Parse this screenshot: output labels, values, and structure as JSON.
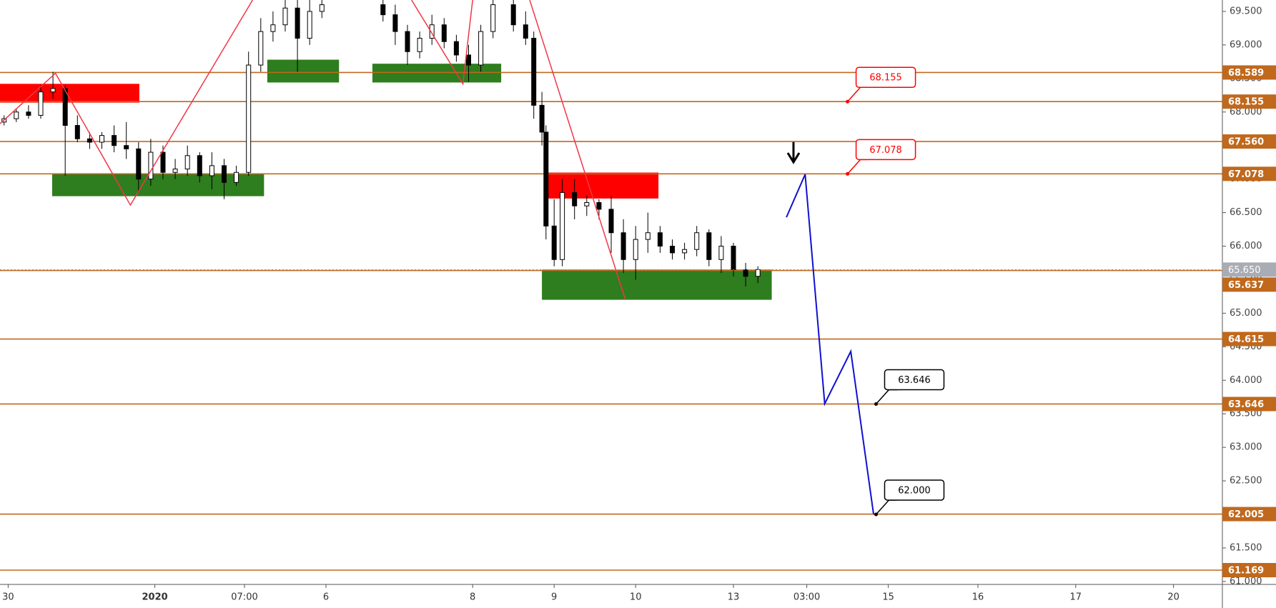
{
  "chart_data": {
    "type": "candlestick",
    "xlim": [
      0,
      150
    ],
    "ylim": [
      60.956,
      69.67
    ],
    "xticks": [
      {
        "value": 1,
        "label": "30"
      },
      {
        "value": 19,
        "label": "2020"
      },
      {
        "value": 30,
        "label": "07:00"
      },
      {
        "value": 40,
        "label": "6"
      },
      {
        "value": 58,
        "label": "8"
      },
      {
        "value": 68,
        "label": "9"
      },
      {
        "value": 78,
        "label": "10"
      },
      {
        "value": 90,
        "label": "13"
      },
      {
        "value": 99,
        "label": "03:00"
      },
      {
        "value": 109,
        "label": "15"
      },
      {
        "value": 120,
        "label": "16"
      },
      {
        "value": 132,
        "label": "17"
      },
      {
        "value": 144,
        "label": "20"
      }
    ],
    "yticks": [
      {
        "value": 61,
        "label": "61.000"
      },
      {
        "value": 61.5,
        "label": "61.500"
      },
      {
        "value": 62,
        "label": "62.000"
      },
      {
        "value": 62.5,
        "label": "62.500"
      },
      {
        "value": 63,
        "label": "63.000"
      },
      {
        "value": 63.5,
        "label": "63.500"
      },
      {
        "value": 64,
        "label": "64.000"
      },
      {
        "value": 64.5,
        "label": "64.500"
      },
      {
        "value": 65,
        "label": "65.000"
      },
      {
        "value": 65.5,
        "label": "65.500"
      },
      {
        "value": 66,
        "label": "66.000"
      },
      {
        "value": 66.5,
        "label": "66.500"
      },
      {
        "value": 67,
        "label": "67.000"
      },
      {
        "value": 67.5,
        "label": "67.500"
      },
      {
        "value": 68,
        "label": "68.000"
      },
      {
        "value": 68.5,
        "label": "68.500"
      },
      {
        "value": 69,
        "label": "69.000"
      },
      {
        "value": 69.5,
        "label": "69.500"
      }
    ],
    "x": [
      0.5,
      2,
      3.5,
      5,
      6.5,
      8,
      9.5,
      11,
      12.5,
      14,
      15.5,
      17,
      18.5,
      20,
      21.5,
      23,
      24.5,
      26,
      27.5,
      29,
      30.5,
      32,
      33.5,
      35,
      36.5,
      38,
      39.5,
      47,
      48.5,
      50,
      51.5,
      53,
      54.5,
      56,
      57.5,
      59,
      60.5,
      63,
      64.5,
      65.5,
      66.5,
      67,
      68,
      69,
      70.5,
      72,
      73.5,
      75,
      76.5,
      78,
      79.5,
      81,
      82.5,
      84,
      85.5,
      87,
      88.5,
      90,
      91.5,
      93
    ],
    "open": [
      67.85,
      67.9,
      68,
      67.95,
      68.3,
      68.35,
      67.8,
      67.6,
      67.55,
      67.65,
      67.5,
      67.45,
      67,
      67.4,
      67.1,
      67.15,
      67.35,
      67.05,
      67.2,
      66.95,
      67.1,
      68.7,
      69.2,
      69.3,
      69.55,
      69.1,
      69.5,
      69.6,
      69.45,
      69.2,
      68.9,
      69.1,
      69.3,
      69.05,
      68.85,
      68.7,
      69.2,
      69.6,
      69.3,
      69.1,
      68.1,
      67.7,
      66.3,
      65.8,
      66.8,
      66.6,
      66.65,
      66.55,
      66.2,
      65.8,
      66.1,
      66.2,
      66,
      65.9,
      65.95,
      66.2,
      65.8,
      66,
      65.65,
      65.55
    ],
    "high": [
      67.95,
      68.05,
      68.1,
      68.4,
      68.6,
      68.4,
      67.95,
      67.7,
      67.7,
      67.8,
      67.85,
      67.55,
      67.6,
      67.5,
      67.3,
      67.5,
      67.4,
      67.4,
      67.3,
      67.2,
      68.9,
      69.4,
      69.5,
      69.67,
      69.67,
      69.67,
      69.67,
      69.67,
      69.6,
      69.3,
      69.2,
      69.45,
      69.4,
      69.15,
      69,
      69.3,
      69.67,
      69.67,
      69.5,
      69.2,
      68.3,
      67.8,
      66.7,
      67,
      67,
      66.75,
      66.7,
      66.75,
      66.4,
      66.3,
      66.5,
      66.3,
      66.1,
      66.05,
      66.3,
      66.25,
      66.15,
      66.05,
      65.75,
      65.7
    ],
    "low": [
      67.8,
      67.85,
      67.9,
      67.9,
      68.2,
      67.05,
      67.55,
      67.45,
      67.45,
      67.4,
      67.3,
      66.8,
      66.9,
      67,
      67,
      67.05,
      66.95,
      66.85,
      66.7,
      66.9,
      67.05,
      68.6,
      69.05,
      69.2,
      68.6,
      69,
      69.4,
      69.35,
      69,
      68.7,
      68.8,
      69,
      68.95,
      68.75,
      68.45,
      68.6,
      69.1,
      69.2,
      69,
      67.9,
      67.5,
      66.1,
      65.7,
      65.7,
      66.4,
      66.45,
      66.4,
      65.9,
      65.6,
      65.5,
      65.9,
      65.9,
      65.8,
      65.8,
      65.85,
      65.7,
      65.6,
      65.55,
      65.4,
      65.45
    ],
    "close": [
      67.9,
      68,
      67.95,
      68.3,
      68.35,
      67.8,
      67.6,
      67.55,
      67.65,
      67.5,
      67.45,
      67,
      67.4,
      67.1,
      67.15,
      67.35,
      67.05,
      67.2,
      66.95,
      67.1,
      68.7,
      69.2,
      69.3,
      69.55,
      69.1,
      69.5,
      69.6,
      69.45,
      69.2,
      68.9,
      69.1,
      69.3,
      69.05,
      68.85,
      68.7,
      69.2,
      69.6,
      69.3,
      69.1,
      68.1,
      67.7,
      66.3,
      65.8,
      66.8,
      66.6,
      66.65,
      66.55,
      66.2,
      65.8,
      66.1,
      66.2,
      66,
      65.9,
      65.95,
      66.2,
      65.8,
      66,
      65.65,
      65.55,
      65.65
    ],
    "levels": {
      "color": "#c0681c",
      "values": [
        68.589,
        68.155,
        67.56,
        67.078,
        65.637,
        64.615,
        63.646,
        62.005,
        61.169
      ],
      "value_labels": [
        "68.589",
        "68.155",
        "67.560",
        "67.078",
        "65.637",
        "64.615",
        "63.646",
        "62.005",
        "61.169"
      ]
    },
    "last_price": {
      "value": 65.65,
      "label": "65.650"
    },
    "zones": [
      {
        "color": "#ff0000",
        "x": [
          0,
          17.1
        ],
        "y": [
          68.14,
          68.42
        ]
      },
      {
        "color": "#2e7d1e",
        "x": [
          6.4,
          32.4
        ],
        "y": [
          66.745,
          67.085
        ]
      },
      {
        "color": "#2e7d1e",
        "x": [
          32.8,
          41.6
        ],
        "y": [
          68.44,
          68.78
        ]
      },
      {
        "color": "#2e7d1e",
        "x": [
          45.7,
          61.5
        ],
        "y": [
          68.44,
          68.72
        ]
      },
      {
        "color": "#ff0000",
        "x": [
          67,
          80.8
        ],
        "y": [
          66.71,
          67.097
        ]
      },
      {
        "color": "#2e7d1e",
        "x": [
          66.5,
          94.7
        ],
        "y": [
          65.2,
          65.65
        ]
      }
    ],
    "zigzag": {
      "color": "#f23645",
      "x": [
        0,
        6.8,
        16,
        31,
        null,
        50.5,
        56.8,
        58,
        null,
        65,
        76.7
      ],
      "values": [
        67.825,
        68.578,
        66.612,
        69.67,
        null,
        69.67,
        68.42,
        69.67,
        null,
        69.67,
        65.216
      ]
    },
    "projection": {
      "color": "#1010d0",
      "x": [
        96.5,
        98.8,
        101.2,
        104.4,
        107.2
      ],
      "values": [
        66.43,
        67.07,
        63.65,
        64.43,
        62
      ]
    },
    "callouts": [
      {
        "label": "68.155",
        "value": 68.155,
        "x": 104,
        "color": "#ff0000"
      },
      {
        "label": "67.078",
        "value": 67.078,
        "x": 104,
        "color": "#ff0000"
      },
      {
        "label": "63.646",
        "value": 63.646,
        "x": 107.5,
        "color": "#000000"
      },
      {
        "label": "62.000",
        "value": 62,
        "x": 107.5,
        "color": "#000000"
      }
    ]
  }
}
